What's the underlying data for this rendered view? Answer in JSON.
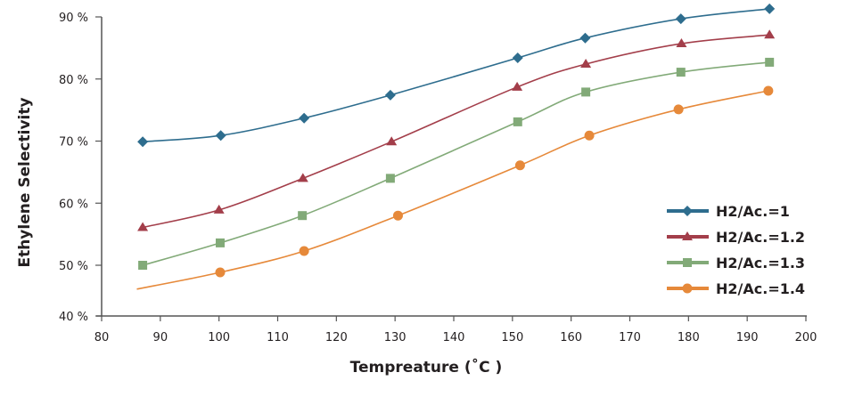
{
  "chart_data": {
    "type": "line",
    "title": "",
    "xlabel": "Tempreature (˚C )",
    "ylabel": "Ethylene Selectivity",
    "xlim": [
      80,
      200
    ],
    "ylim": [
      40,
      90
    ],
    "xticks": [
      "80",
      "90",
      "100",
      "110",
      "120",
      "130",
      "140",
      "150",
      "160",
      "170",
      "180",
      "190",
      "200"
    ],
    "yticks": [
      "40 %",
      "50 %",
      "60 %",
      "70 %",
      "80 %",
      "90 %"
    ],
    "xtick_values": [
      80,
      90,
      100,
      110,
      120,
      130,
      140,
      150,
      160,
      170,
      180,
      190,
      200
    ],
    "ytick_values": [
      40,
      50,
      60,
      70,
      80,
      90
    ],
    "grid": false,
    "legend_position": "right",
    "series": [
      {
        "name": "H2/Ac.=1",
        "color": "#2e6d8e",
        "marker": "diamond",
        "x": [
          87,
          100.3,
          114.5,
          129.2,
          150.9,
          162.4,
          178.7,
          193.8
        ],
        "y": [
          69.9,
          70.9,
          73.7,
          77.4,
          83.4,
          86.6,
          89.7,
          91.3
        ]
      },
      {
        "name": "H2/Ac.=1.2",
        "color": "#a33e4a",
        "marker": "triangle",
        "x": [
          87,
          100,
          114.3,
          129.4,
          150.8,
          162.5,
          178.8,
          193.8
        ],
        "y": [
          56.1,
          58.9,
          64.0,
          69.9,
          78.7,
          82.4,
          85.7,
          87.1
        ]
      },
      {
        "name": "H2/Ac.=1.3",
        "color": "#82aa78",
        "marker": "square",
        "x": [
          87,
          100.2,
          114.2,
          129.2,
          150.9,
          162.5,
          178.7,
          193.8
        ],
        "y": [
          50.0,
          53.6,
          58.0,
          64.0,
          73.1,
          77.9,
          81.1,
          82.7
        ]
      },
      {
        "name": "H2/Ac.=1.4",
        "color": "#e6893a",
        "marker": "circle",
        "x": [
          86,
          100.2,
          114.5,
          130.5,
          151.3,
          163.1,
          178.3,
          193.6
        ],
        "y": [
          45.3,
          48.6,
          52.3,
          58.0,
          66.1,
          70.9,
          75.1,
          78.1
        ],
        "markers_from_index": 1
      }
    ]
  }
}
